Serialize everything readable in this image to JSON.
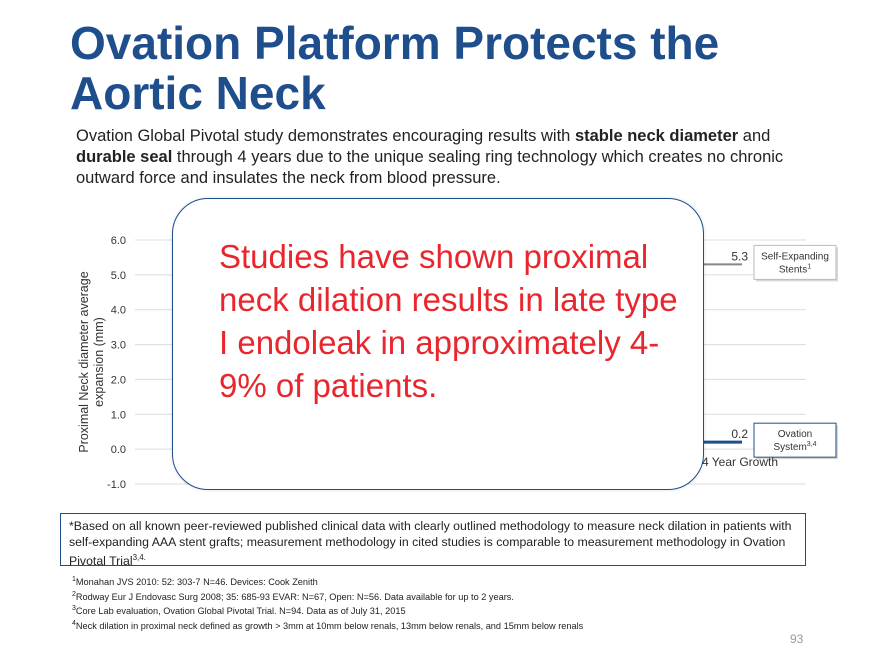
{
  "title": "Ovation Platform Protects the Aortic Neck",
  "summary": {
    "part1": "Ovation Global Pivotal study demonstrates encouraging results with ",
    "bold1": "stable neck diameter",
    "part2": " and ",
    "bold2": "durable seal",
    "part3": " through 4 years due to the unique sealing ring technology which creates no chronic outward force and insulates the neck from blood pressure."
  },
  "chart_data": {
    "type": "line",
    "title": "",
    "ylabel": "Proximal Neck diameter average expansion (mm)",
    "xlabel": "",
    "ylim": [
      -1.0,
      6.0
    ],
    "yticks": [
      "6.0",
      "5.0",
      "4.0",
      "3.0",
      "2.0",
      "1.0",
      "0.0",
      "-1.0"
    ],
    "categories": [
      "4 Year Growth"
    ],
    "series": [
      {
        "name": "Self-Expanding Stents",
        "legend_sup": "1",
        "values": [
          5.3
        ],
        "value_label": "5.3",
        "color": "#888888"
      },
      {
        "name": "Ovation System",
        "legend_sup": "3,4",
        "values": [
          0.2
        ],
        "value_label": "0.2",
        "color": "#1f4e8c"
      }
    ],
    "grid": true
  },
  "callout": {
    "text": "Studies have shown proximal neck dilation results in late type I endoleak in approximately 4-9% of patients."
  },
  "footnote": {
    "text": "*Based on all known peer-reviewed published clinical data with clearly outlined methodology to measure neck dilation in patients with self-expanding AAA stent grafts; measurement methodology in cited studies is comparable to measurement methodology in Ovation Pivotal Trial",
    "sup": "3,4."
  },
  "references": [
    {
      "num": "1",
      "text": "Monahan JVS 2010: 52: 303-7 N=46. Devices: Cook Zenith"
    },
    {
      "num": "2",
      "text": "Rodway Eur J Endovasc Surg 2008; 35: 685-93 EVAR: N=67, Open: N=56. Data available for up to 2 years."
    },
    {
      "num": "3",
      "text": "Core Lab evaluation, Ovation Global Pivotal Trial. N=94. Data as of July 31, 2015"
    },
    {
      "num": "4",
      "text": "Neck dilation in proximal neck defined as growth > 3mm at 10mm below renals, 13mm below renals, and 15mm below renals"
    }
  ],
  "page_number": "93",
  "colors": {
    "title": "#1f4e8c",
    "callout_text": "#e8262d",
    "accent": "#1f4e8c"
  }
}
